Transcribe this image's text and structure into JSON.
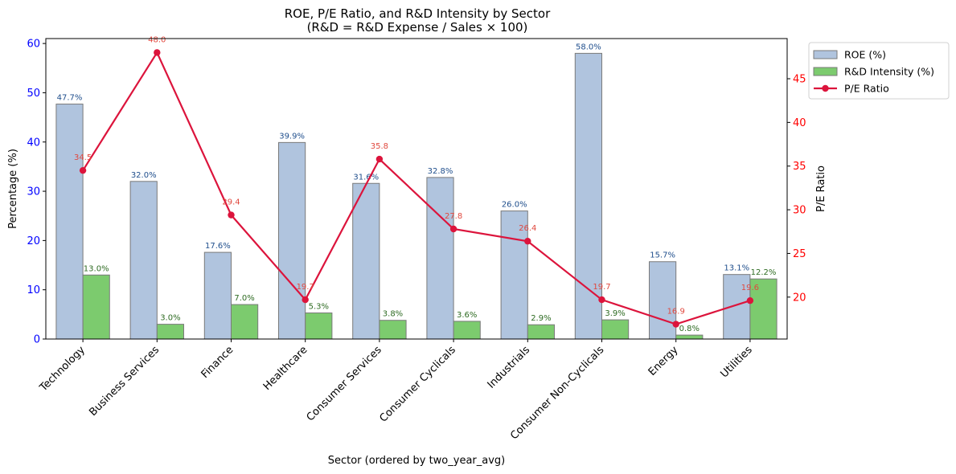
{
  "chart_data": {
    "type": "bar",
    "title": "ROE, P/E Ratio, and R&D Intensity by Sector",
    "subtitle": "(R&D = R&D Expense / Sales × 100)",
    "xlabel": "Sector (ordered by two_year_avg)",
    "ylabel": "Percentage (%)",
    "y2label": "P/E Ratio",
    "categories": [
      "Technology",
      "Business Services",
      "Finance",
      "Healthcare",
      "Consumer Services",
      "Consumer Cyclicals",
      "Industrials",
      "Consumer Non-Cyclicals",
      "Energy",
      "Utilities"
    ],
    "ylim": [
      0,
      61
    ],
    "yticks": [
      "0",
      "10",
      "20",
      "30",
      "40",
      "50",
      "60"
    ],
    "y2lim": [
      15.2,
      49.6
    ],
    "y2ticks": [
      "20",
      "25",
      "30",
      "35",
      "40",
      "45"
    ],
    "series": [
      {
        "name": "ROE (%)",
        "axis": "left",
        "kind": "bar",
        "color": "#b0c4de",
        "label_color": "#1f4e8c",
        "values": [
          47.7,
          32.0,
          17.6,
          39.9,
          31.6,
          32.8,
          26.0,
          58.0,
          15.7,
          13.1
        ],
        "labels": [
          "47.7%",
          "32.0%",
          "17.6%",
          "39.9%",
          "31.6%",
          "32.8%",
          "26.0%",
          "58.0%",
          "15.7%",
          "13.1%"
        ]
      },
      {
        "name": "R&D Intensity (%)",
        "axis": "left",
        "kind": "bar",
        "color": "#7ccb6e",
        "label_color": "#2e6b22",
        "values": [
          13.0,
          3.0,
          7.0,
          5.3,
          3.8,
          3.6,
          2.9,
          3.9,
          0.8,
          12.2
        ],
        "labels": [
          "13.0%",
          "3.0%",
          "7.0%",
          "5.3%",
          "3.8%",
          "3.6%",
          "2.9%",
          "3.9%",
          "0.8%",
          "12.2%"
        ]
      },
      {
        "name": "P/E Ratio",
        "axis": "right",
        "kind": "line",
        "color": "#dc143c",
        "label_color": "#e0483e",
        "values": [
          34.5,
          48.0,
          29.4,
          19.7,
          35.8,
          27.8,
          26.4,
          19.7,
          16.9,
          19.6
        ],
        "labels": [
          "34.5",
          "48.0",
          "29.4",
          "19.7",
          "35.8",
          "27.8",
          "26.4",
          "19.7",
          "16.9",
          "19.6"
        ]
      }
    ],
    "left_axis_color": "#0000ff",
    "right_axis_color": "#ff0000",
    "grid": false,
    "legend_position": "outside upper right"
  }
}
